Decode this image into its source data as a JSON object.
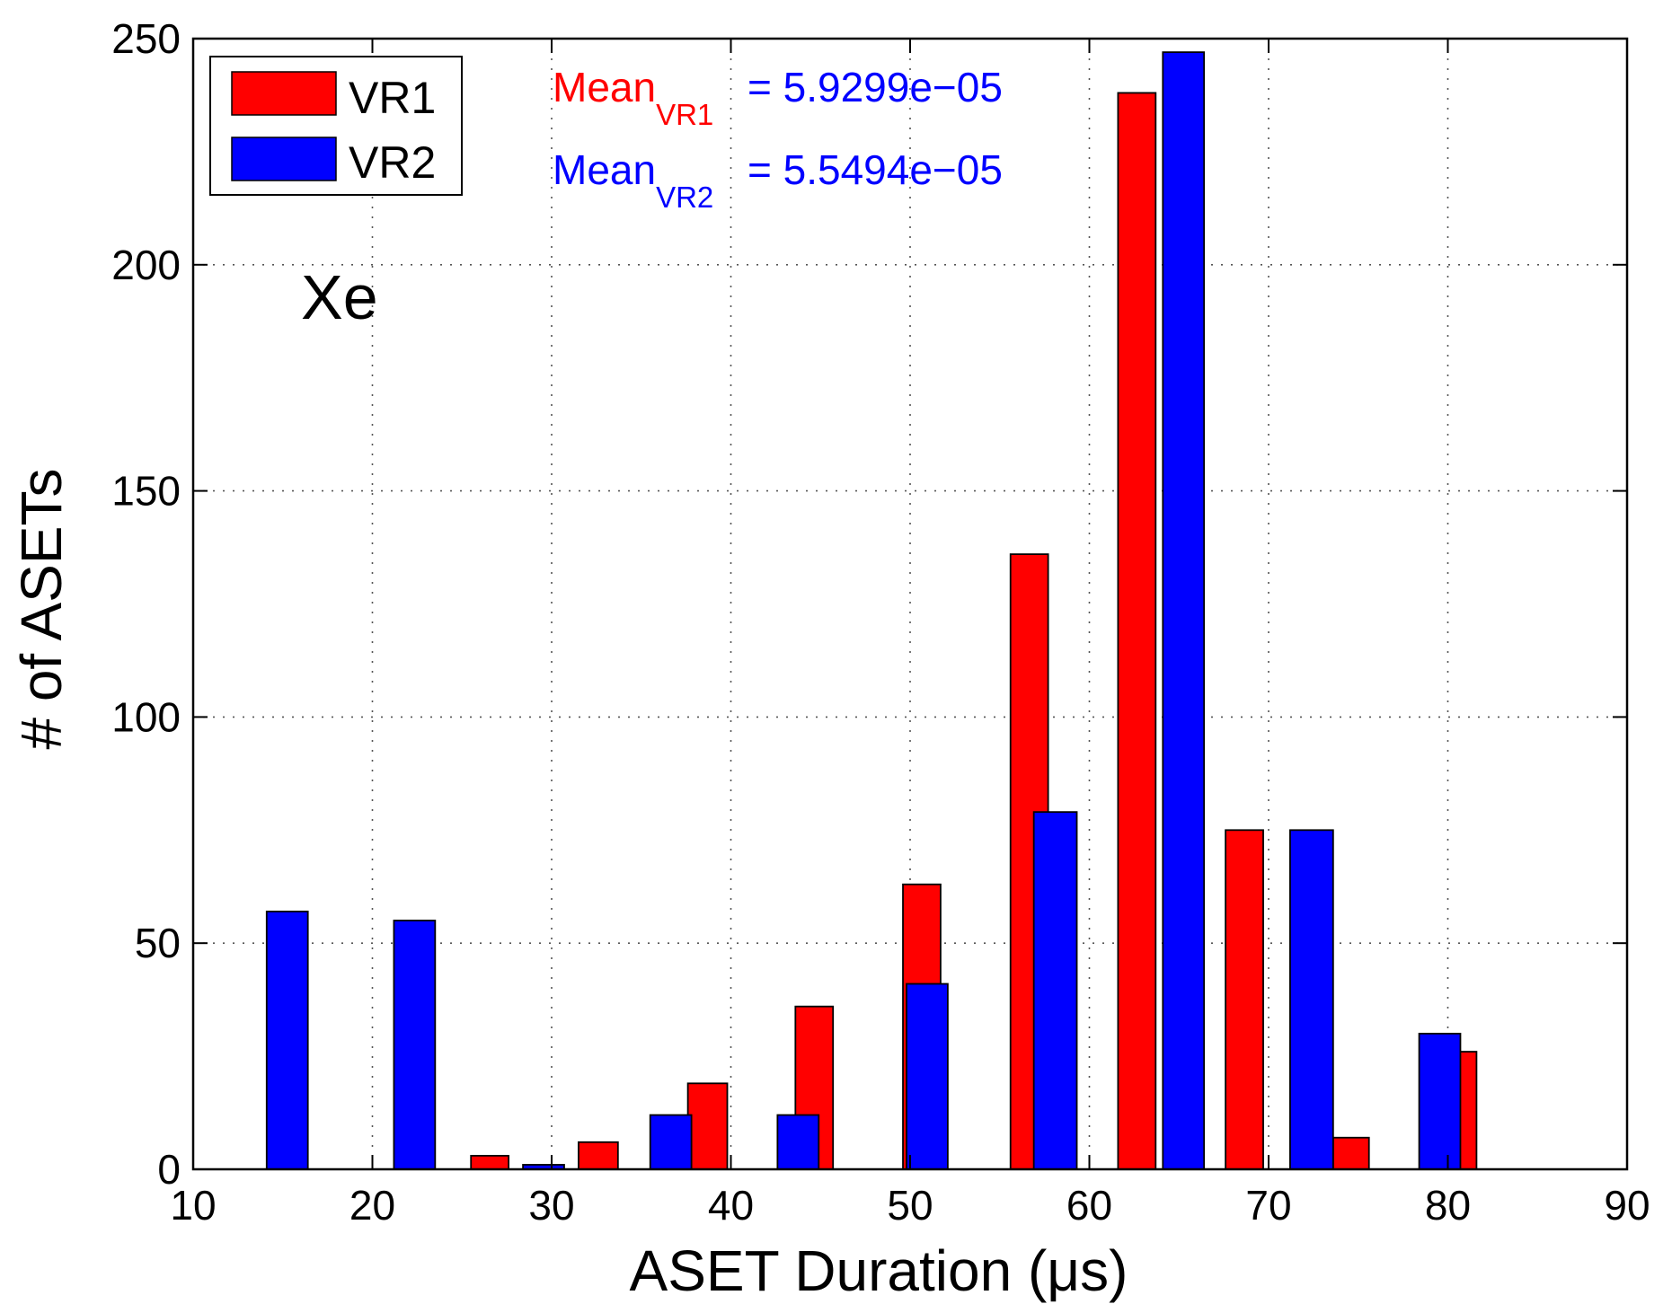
{
  "chart_data": {
    "type": "bar",
    "title": "",
    "xlabel": "ASET Duration (μs)",
    "ylabel": "# of ASETs",
    "xlim": [
      10,
      90
    ],
    "ylim": [
      0,
      250
    ],
    "xticks": [
      10,
      20,
      30,
      40,
      50,
      60,
      70,
      80,
      90
    ],
    "yticks": [
      0,
      50,
      100,
      150,
      200,
      250
    ],
    "grid": true,
    "legend_position": "top-left",
    "annotation": "Xe",
    "series": [
      {
        "name": "VR1",
        "color": "#ff0000",
        "mean_label": "Mean",
        "mean_subscript": "VR1",
        "mean_value": "= 5.9299e−05",
        "bins": [
          {
            "x0": 25.5,
            "x1": 27.6,
            "value": 3
          },
          {
            "x0": 31.5,
            "x1": 33.7,
            "value": 6
          },
          {
            "x0": 37.6,
            "x1": 39.8,
            "value": 19
          },
          {
            "x0": 43.6,
            "x1": 45.7,
            "value": 36
          },
          {
            "x0": 49.6,
            "x1": 51.7,
            "value": 63
          },
          {
            "x0": 55.6,
            "x1": 57.7,
            "value": 136
          },
          {
            "x0": 61.6,
            "x1": 63.7,
            "value": 238
          },
          {
            "x0": 67.6,
            "x1": 69.7,
            "value": 75
          },
          {
            "x0": 73.6,
            "x1": 75.6,
            "value": 7
          },
          {
            "x0": 79.6,
            "x1": 81.6,
            "value": 26
          }
        ]
      },
      {
        "name": "VR2",
        "color": "#0000ff",
        "mean_label": "Mean",
        "mean_subscript": "VR2",
        "mean_value": "= 5.5494e−05",
        "bins": [
          {
            "x0": 14.1,
            "x1": 16.4,
            "value": 57
          },
          {
            "x0": 21.2,
            "x1": 23.5,
            "value": 55
          },
          {
            "x0": 28.4,
            "x1": 30.7,
            "value": 1
          },
          {
            "x0": 35.5,
            "x1": 37.8,
            "value": 12
          },
          {
            "x0": 42.6,
            "x1": 44.9,
            "value": 12
          },
          {
            "x0": 49.8,
            "x1": 52.1,
            "value": 41
          },
          {
            "x0": 56.9,
            "x1": 59.3,
            "value": 79
          },
          {
            "x0": 64.1,
            "x1": 66.4,
            "value": 247
          },
          {
            "x0": 71.2,
            "x1": 73.6,
            "value": 75
          },
          {
            "x0": 78.4,
            "x1": 80.7,
            "value": 30
          }
        ]
      }
    ]
  }
}
